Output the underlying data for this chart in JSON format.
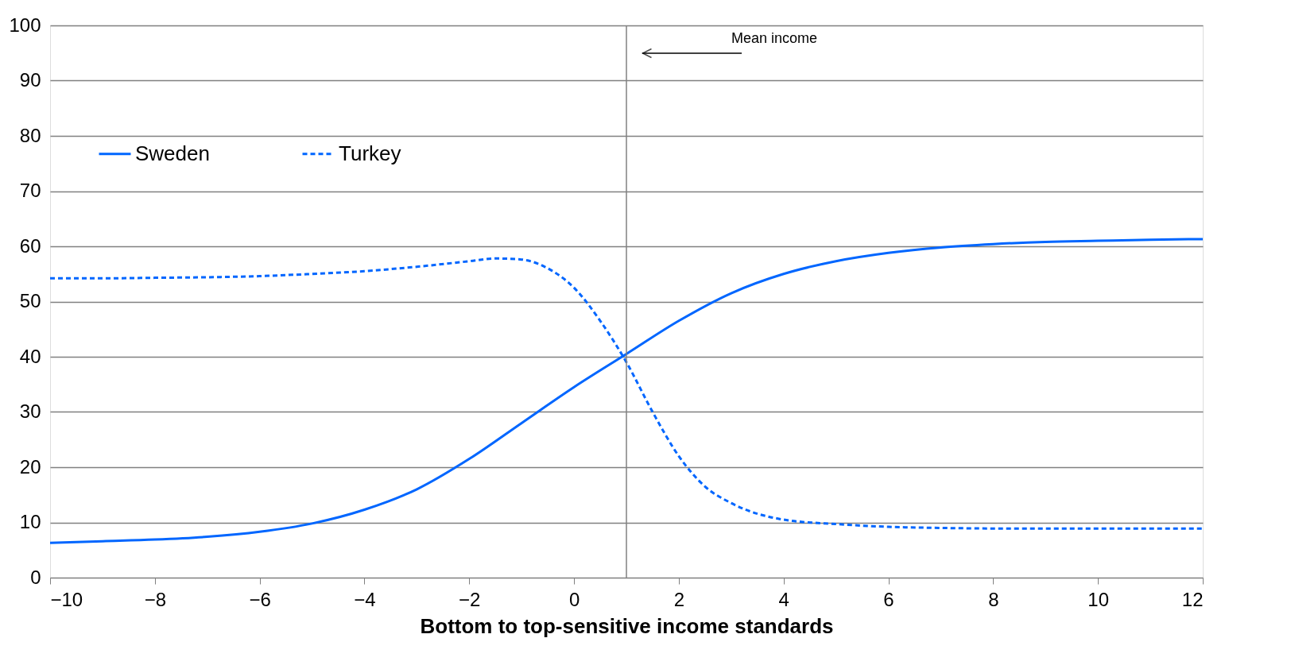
{
  "chart_data": {
    "type": "line",
    "xlabel": "Bottom to top-sensitive income standards",
    "xlim": [
      -10,
      12
    ],
    "xticks": [
      -10,
      -8,
      -6,
      -4,
      -2,
      0,
      2,
      4,
      6,
      8,
      10,
      12
    ],
    "ylim": [
      0,
      100
    ],
    "yticks": [
      0,
      10,
      20,
      30,
      40,
      50,
      60,
      70,
      80,
      90,
      100
    ],
    "grid": "y",
    "legend": "top left",
    "marker": "none",
    "series": [
      {
        "name": "Sweden",
        "color": "#0066ff",
        "line_style": "solid",
        "x": [
          -10,
          -9,
          -8,
          -7,
          -6,
          -5,
          -4,
          -3,
          -2,
          -1,
          0,
          1,
          2,
          3,
          4,
          5,
          6,
          7,
          8,
          9,
          10,
          11,
          12
        ],
        "values": [
          6.3,
          6.6,
          6.9,
          7.4,
          8.3,
          9.8,
          12.3,
          16,
          21.5,
          28,
          34.5,
          40.5,
          46.5,
          51.5,
          55,
          57.3,
          58.8,
          59.8,
          60.4,
          60.8,
          61,
          61.2,
          61.3
        ]
      },
      {
        "name": "Turkey",
        "color": "#0066ff",
        "line_style": "dashed",
        "x": [
          -10,
          -9,
          -8,
          -7,
          -6,
          -5,
          -4,
          -3,
          -2,
          -1.5,
          -1,
          -0.5,
          0,
          0.5,
          1,
          1.5,
          2,
          2.5,
          3,
          4,
          5,
          6,
          7,
          8,
          9,
          10,
          11,
          12
        ],
        "values": [
          54.2,
          54.2,
          54.3,
          54.4,
          54.6,
          55,
          55.5,
          56.3,
          57.3,
          57.8,
          57.6,
          56,
          52.5,
          46.5,
          39,
          30,
          22,
          16.5,
          13.5,
          10.5,
          9.7,
          9.2,
          9,
          8.9,
          8.9,
          8.9,
          8.9,
          8.9
        ]
      }
    ],
    "annotations": [
      "Mean income"
    ],
    "ref_lines": [
      {
        "axis": "x",
        "value": 1,
        "color": "#808080"
      }
    ]
  }
}
